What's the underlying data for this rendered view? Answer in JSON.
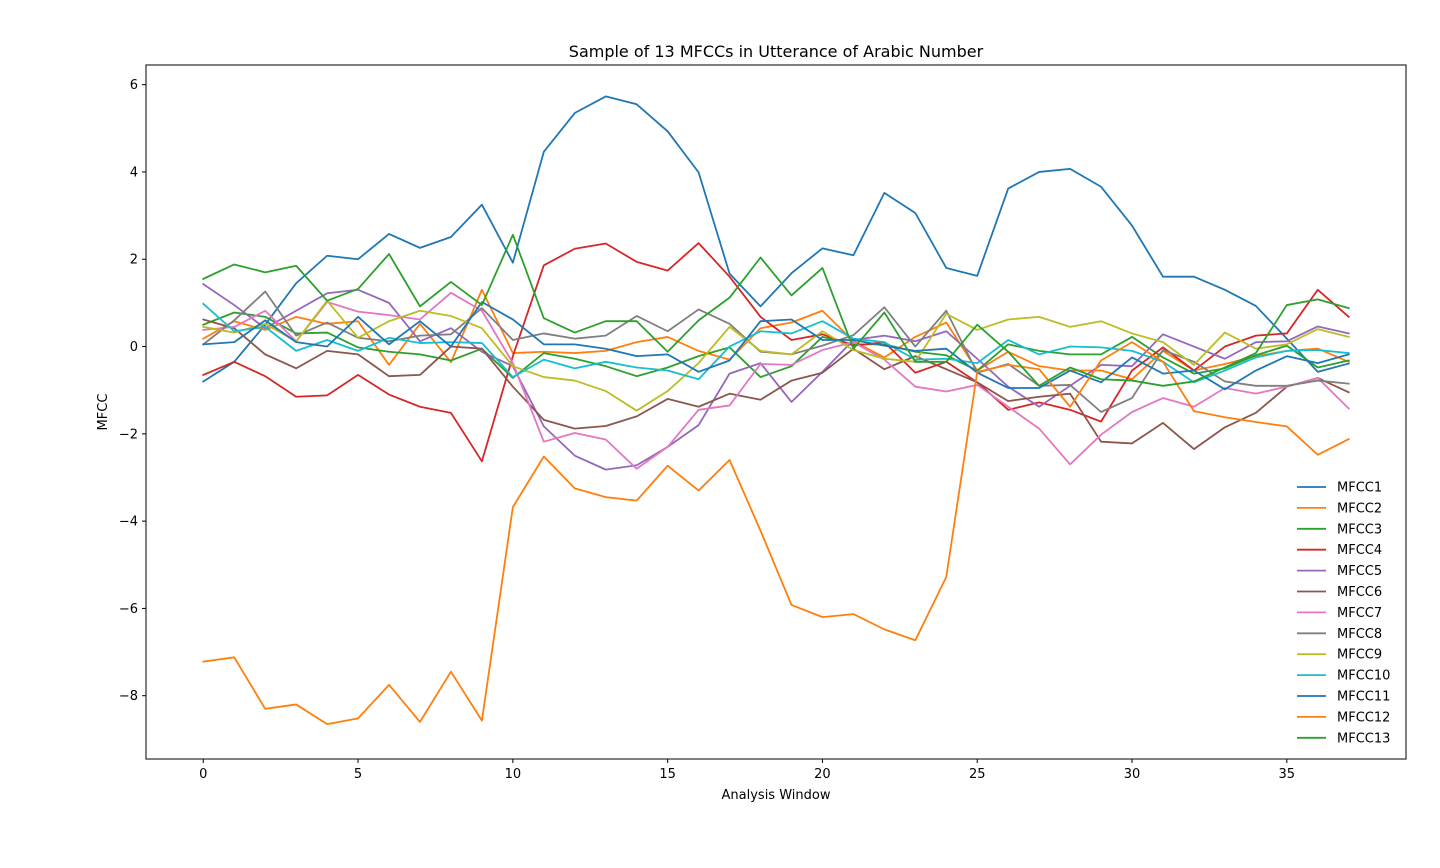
{
  "chart_data": {
    "type": "line",
    "title": "Sample of 13 MFCCs in Utterance of Arabic Number",
    "xlabel": "Analysis Window",
    "ylabel": "MFCC",
    "xlim": [
      -1.85,
      38.85
    ],
    "ylim": [
      -9.45,
      6.45
    ],
    "xticks": [
      0,
      5,
      10,
      15,
      20,
      25,
      30,
      35
    ],
    "yticks": [
      -8,
      -6,
      -4,
      -2,
      0,
      2,
      4,
      6
    ],
    "ytick_labels": [
      "−8",
      "−6",
      "−4",
      "−2",
      "0",
      "2",
      "4",
      "6"
    ],
    "grid": false,
    "legend_position": "lower-right",
    "x": [
      0,
      1,
      2,
      3,
      4,
      5,
      6,
      7,
      8,
      9,
      10,
      11,
      12,
      13,
      14,
      15,
      16,
      17,
      18,
      19,
      20,
      21,
      22,
      23,
      24,
      25,
      26,
      27,
      28,
      29,
      30,
      31,
      32,
      33,
      34,
      35,
      36,
      37
    ],
    "series": [
      {
        "name": "MFCC1",
        "color": "#1f77b4",
        "values": [
          -0.8,
          -0.35,
          0.5,
          1.45,
          2.08,
          2.0,
          2.58,
          2.26,
          2.51,
          3.25,
          1.92,
          4.46,
          5.35,
          5.73,
          5.55,
          4.93,
          3.99,
          1.67,
          0.92,
          1.68,
          2.25,
          2.09,
          3.52,
          3.06,
          1.8,
          1.62,
          3.62,
          4.0,
          4.07,
          3.66,
          2.77,
          1.6,
          1.6,
          1.3,
          0.93,
          0.18,
          -0.58,
          -0.39
        ]
      },
      {
        "name": "MFCC2",
        "color": "#ff7f0e",
        "values": [
          0.18,
          0.58,
          0.38,
          0.68,
          0.52,
          0.58,
          -0.42,
          0.52,
          -0.36,
          1.3,
          -0.15,
          -0.12,
          -0.15,
          -0.1,
          0.1,
          0.22,
          -0.1,
          -0.3,
          0.42,
          0.55,
          0.82,
          0.12,
          -0.25,
          0.22,
          0.55,
          -0.55,
          -0.12,
          -0.45,
          -0.55,
          -0.55,
          -0.75,
          -0.1,
          -0.55,
          -0.4,
          -0.22,
          -0.1,
          -0.05,
          -0.35
        ]
      },
      {
        "name": "MFCC3",
        "color": "#2ca02c",
        "values": [
          0.5,
          0.78,
          0.68,
          0.3,
          0.32,
          -0.02,
          -0.12,
          -0.18,
          -0.32,
          -0.05,
          -0.72,
          -0.15,
          -0.28,
          -0.45,
          -0.68,
          -0.48,
          -0.22,
          -0.02,
          -0.7,
          -0.45,
          0.22,
          0.05,
          0.05,
          -0.12,
          -0.2,
          -0.55,
          0.05,
          -0.1,
          -0.18,
          -0.18,
          0.22,
          -0.25,
          -0.62,
          -0.5,
          -0.2,
          0.02,
          -0.48,
          -0.32
        ]
      },
      {
        "name": "MFCC4",
        "color": "#d62728",
        "values": [
          -0.65,
          -0.35,
          -0.68,
          -1.15,
          -1.12,
          -0.65,
          -1.1,
          -1.38,
          -1.52,
          -2.63,
          -0.22,
          1.86,
          2.24,
          2.36,
          1.94,
          1.74,
          2.37,
          1.6,
          0.68,
          0.15,
          0.28,
          0.02,
          0.1,
          -0.6,
          -0.35,
          -0.82,
          -1.45,
          -1.28,
          -1.45,
          -1.72,
          -0.55,
          -0.02,
          -0.55,
          0.0,
          0.25,
          0.3,
          1.3,
          0.68
        ]
      },
      {
        "name": "MFCC5",
        "color": "#9467bd",
        "values": [
          1.43,
          0.95,
          0.42,
          0.82,
          1.22,
          1.3,
          1.0,
          0.12,
          0.42,
          -0.12,
          -0.45,
          -1.83,
          -2.5,
          -2.82,
          -2.72,
          -2.3,
          -1.8,
          -0.62,
          -0.38,
          -1.27,
          -0.58,
          0.15,
          0.25,
          0.12,
          0.35,
          -0.28,
          -0.92,
          -1.38,
          -0.9,
          -0.42,
          -0.45,
          0.28,
          0.0,
          -0.28,
          0.1,
          0.12,
          0.46,
          0.3
        ]
      },
      {
        "name": "MFCC6",
        "color": "#8c564b",
        "values": [
          0.62,
          0.42,
          -0.18,
          -0.5,
          -0.1,
          -0.18,
          -0.68,
          -0.65,
          0.0,
          -0.05,
          -0.92,
          -1.68,
          -1.88,
          -1.82,
          -1.6,
          -1.2,
          -1.38,
          -1.08,
          -1.22,
          -0.78,
          -0.6,
          -0.05,
          -0.52,
          -0.22,
          -0.52,
          -0.82,
          -1.25,
          -1.15,
          -1.08,
          -2.18,
          -2.22,
          -1.75,
          -2.35,
          -1.85,
          -1.52,
          -0.92,
          -0.72,
          -1.05
        ]
      },
      {
        "name": "MFCC7",
        "color": "#e377c2",
        "values": [
          0.38,
          0.45,
          0.82,
          0.12,
          1.02,
          0.8,
          0.72,
          0.62,
          1.23,
          0.82,
          -0.38,
          -2.18,
          -1.98,
          -2.13,
          -2.8,
          -2.3,
          -1.45,
          -1.35,
          -0.4,
          -0.42,
          -0.08,
          0.1,
          -0.3,
          -0.92,
          -1.03,
          -0.88,
          -1.38,
          -1.88,
          -2.7,
          -2.02,
          -1.5,
          -1.18,
          -1.38,
          -0.95,
          -1.08,
          -0.92,
          -0.72,
          -1.42
        ]
      },
      {
        "name": "MFCC8",
        "color": "#7f7f7f",
        "values": [
          0.05,
          0.6,
          1.26,
          0.25,
          0.55,
          0.2,
          0.12,
          0.25,
          0.28,
          0.88,
          0.15,
          0.3,
          0.18,
          0.25,
          0.7,
          0.35,
          0.85,
          0.52,
          -0.12,
          -0.18,
          0.02,
          0.26,
          0.9,
          0.0,
          0.82,
          -0.6,
          -0.4,
          -0.9,
          -0.88,
          -1.5,
          -1.18,
          -0.08,
          -0.35,
          -0.8,
          -0.9,
          -0.9,
          -0.78,
          -0.85
        ]
      },
      {
        "name": "MFCC9",
        "color": "#bcbd22",
        "values": [
          0.45,
          0.32,
          0.52,
          0.12,
          1.05,
          0.2,
          0.58,
          0.82,
          0.7,
          0.42,
          -0.45,
          -0.7,
          -0.78,
          -1.02,
          -1.47,
          -1.02,
          -0.38,
          0.45,
          -0.1,
          -0.18,
          0.35,
          -0.08,
          -0.28,
          -0.35,
          0.75,
          0.38,
          0.62,
          0.68,
          0.45,
          0.58,
          0.3,
          0.1,
          -0.42,
          0.32,
          -0.05,
          0.05,
          0.4,
          0.22
        ]
      },
      {
        "name": "MFCC10",
        "color": "#17becf",
        "values": [
          0.98,
          0.35,
          0.45,
          -0.1,
          0.15,
          -0.1,
          0.2,
          0.08,
          0.1,
          0.08,
          -0.7,
          -0.3,
          -0.5,
          -0.35,
          -0.48,
          -0.55,
          -0.75,
          0.0,
          0.35,
          0.3,
          0.58,
          0.18,
          0.1,
          -0.3,
          -0.28,
          -0.38,
          0.15,
          -0.18,
          0.0,
          -0.02,
          -0.1,
          -0.35,
          -0.82,
          -0.55,
          -0.25,
          -0.1,
          -0.08,
          -0.15
        ]
      },
      {
        "name": "MFCC11",
        "color": "#1f77b4",
        "values": [
          0.05,
          0.1,
          0.6,
          0.1,
          0.0,
          0.68,
          0.05,
          0.58,
          0.0,
          1.02,
          0.62,
          0.05,
          0.05,
          -0.05,
          -0.22,
          -0.18,
          -0.58,
          -0.32,
          0.58,
          0.62,
          0.15,
          0.15,
          0.02,
          -0.1,
          -0.05,
          -0.6,
          -0.95,
          -0.95,
          -0.55,
          -0.82,
          -0.25,
          -0.62,
          -0.55,
          -0.98,
          -0.55,
          -0.22,
          -0.38,
          -0.18
        ]
      },
      {
        "name": "MFCC12",
        "color": "#ff7f0e",
        "values": [
          -7.22,
          -7.12,
          -8.3,
          -8.2,
          -8.65,
          -8.52,
          -7.75,
          -8.6,
          -7.45,
          -8.57,
          -3.68,
          -2.52,
          -3.25,
          -3.45,
          -3.53,
          -2.73,
          -3.3,
          -2.6,
          -4.22,
          -5.92,
          -6.2,
          -6.13,
          -6.48,
          -6.73,
          -5.28,
          -0.58,
          -0.42,
          -0.52,
          -1.38,
          -0.32,
          0.1,
          -0.35,
          -1.48,
          -1.62,
          -1.73,
          -1.83,
          -2.48,
          -2.12
        ]
      },
      {
        "name": "MFCC13",
        "color": "#2ca02c",
        "values": [
          1.55,
          1.88,
          1.7,
          1.85,
          1.05,
          1.32,
          2.12,
          0.92,
          1.48,
          0.95,
          2.56,
          0.65,
          0.32,
          0.58,
          0.58,
          -0.12,
          0.6,
          1.12,
          2.04,
          1.17,
          1.8,
          -0.05,
          0.78,
          -0.35,
          -0.35,
          0.5,
          -0.12,
          -0.9,
          -0.48,
          -0.75,
          -0.78,
          -0.9,
          -0.8,
          -0.48,
          -0.15,
          0.95,
          1.08,
          0.88
        ]
      }
    ]
  }
}
